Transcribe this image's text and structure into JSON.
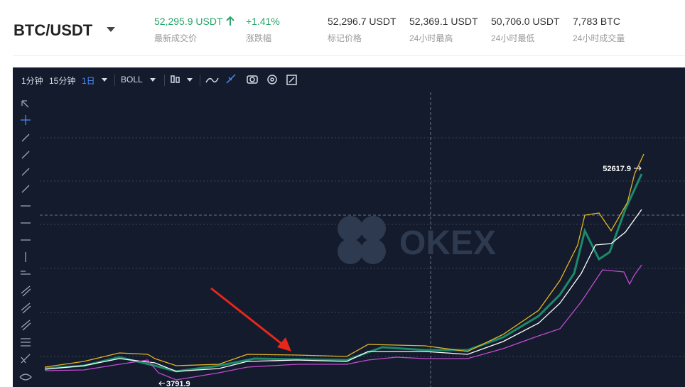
{
  "header": {
    "pair": "BTC/USDT",
    "stats": [
      {
        "value": "52,295.9 USDT",
        "label": "最新成交价"
      },
      {
        "value": "+1.41%",
        "label": "涨跌幅"
      },
      {
        "value": "52,296.7 USDT",
        "label": "标记价格"
      },
      {
        "value": "52,369.1 USDT",
        "label": "24小时最高"
      },
      {
        "value": "50,706.0 USDT",
        "label": "24小时最低"
      },
      {
        "value": "7,783 BTC",
        "label": "24小时成交量"
      }
    ]
  },
  "toolbar": {
    "intervals": [
      "1分钟",
      "15分钟",
      "1日"
    ],
    "indicator": "BOLL"
  },
  "chart": {
    "watermark": "OKEX",
    "high_label": "52617.9",
    "low_label": "3791.9"
  }
}
